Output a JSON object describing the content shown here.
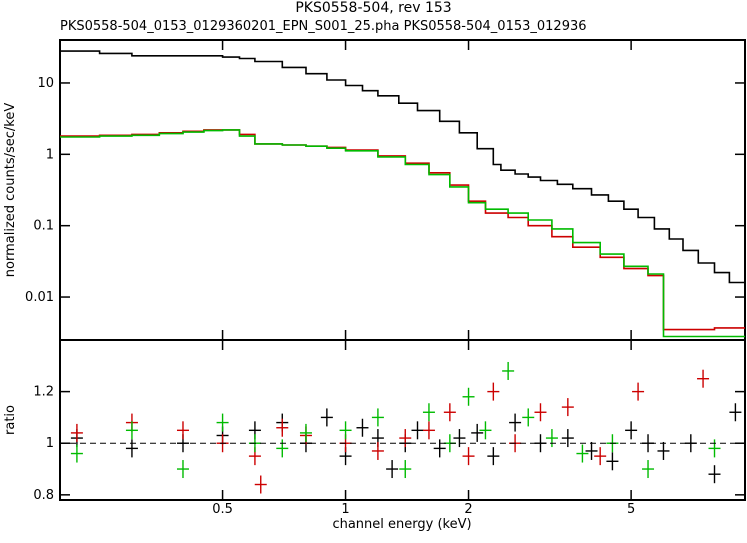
{
  "chart_data": {
    "type": "scatter",
    "title": "PKS0558-504, rev 153",
    "subtitle": "PKS0558-504_0153_0129360201_EPN_S001_25.pha PKS0558-504_0153_012936",
    "xlabel": "channel energy (keV)",
    "x_scale": "log",
    "xlim": [
      0.2,
      9.5
    ],
    "x_ticks": [
      {
        "value": 0.5,
        "label": "0.5"
      },
      {
        "value": 1,
        "label": "1"
      },
      {
        "value": 2,
        "label": "2"
      },
      {
        "value": 5,
        "label": "5"
      }
    ],
    "panels": [
      {
        "name": "spectrum",
        "ylabel": "normalized counts/sec/keV",
        "y_scale": "log",
        "ylim": [
          0.0025,
          40
        ],
        "y_ticks": [
          {
            "value": 0.01,
            "label": "0.01"
          },
          {
            "value": 0.1,
            "label": "0.1"
          },
          {
            "value": 1,
            "label": "1"
          },
          {
            "value": 10,
            "label": "10"
          }
        ],
        "series": [
          {
            "color": "#000000",
            "x": [
              0.2,
              0.25,
              0.3,
              0.35,
              0.4,
              0.45,
              0.5,
              0.55,
              0.6,
              0.7,
              0.8,
              0.9,
              1.0,
              1.1,
              1.2,
              1.35,
              1.5,
              1.7,
              1.9,
              2.1,
              2.3,
              2.4,
              2.6,
              2.8,
              3.0,
              3.3,
              3.6,
              4.0,
              4.4,
              4.8,
              5.2,
              5.7,
              6.2,
              6.7,
              7.3,
              8.0,
              8.7,
              9.5
            ],
            "y": [
              28,
              26,
              24,
              24,
              24,
              24,
              23,
              22,
              20,
              16.5,
              13.5,
              11,
              9.2,
              7.8,
              6.6,
              5.2,
              4.1,
              2.9,
              2.0,
              1.2,
              0.72,
              0.6,
              0.53,
              0.48,
              0.43,
              0.38,
              0.33,
              0.27,
              0.22,
              0.17,
              0.13,
              0.09,
              0.065,
              0.045,
              0.03,
              0.022,
              0.016,
              0.016
            ]
          },
          {
            "color": "#cc0000",
            "x": [
              0.2,
              0.25,
              0.3,
              0.35,
              0.4,
              0.45,
              0.5,
              0.55,
              0.6,
              0.7,
              0.8,
              0.9,
              1.0,
              1.2,
              1.4,
              1.6,
              1.8,
              2.0,
              2.2,
              2.5,
              2.8,
              3.2,
              3.6,
              4.2,
              4.8,
              5.5,
              6.0,
              7.0,
              8.0,
              9.5
            ],
            "y": [
              1.8,
              1.85,
              1.9,
              2.0,
              2.1,
              2.2,
              2.2,
              1.9,
              1.4,
              1.35,
              1.3,
              1.25,
              1.15,
              0.95,
              0.75,
              0.55,
              0.37,
              0.22,
              0.15,
              0.13,
              0.1,
              0.07,
              0.05,
              0.036,
              0.025,
              0.02,
              0.0035,
              0.0035,
              0.0037,
              0.0037
            ]
          },
          {
            "color": "#00bb00",
            "x": [
              0.2,
              0.25,
              0.3,
              0.35,
              0.4,
              0.45,
              0.5,
              0.55,
              0.6,
              0.7,
              0.8,
              0.9,
              1.0,
              1.2,
              1.4,
              1.6,
              1.8,
              2.0,
              2.2,
              2.5,
              2.8,
              3.2,
              3.6,
              4.2,
              4.8,
              5.5,
              6.0,
              7.0,
              8.0,
              9.5
            ],
            "y": [
              1.75,
              1.8,
              1.85,
              1.95,
              2.05,
              2.15,
              2.2,
              1.8,
              1.4,
              1.35,
              1.3,
              1.22,
              1.12,
              0.92,
              0.72,
              0.52,
              0.35,
              0.21,
              0.17,
              0.15,
              0.12,
              0.09,
              0.058,
              0.04,
              0.027,
              0.021,
              0.0028,
              0.0028,
              0.0028,
              0.0028
            ]
          }
        ]
      },
      {
        "name": "ratio",
        "ylabel": "ratio",
        "y_scale": "linear",
        "ylim": [
          0.78,
          1.4
        ],
        "y_ticks": [
          {
            "value": 0.8,
            "label": "0.8"
          },
          {
            "value": 1,
            "label": "1"
          },
          {
            "value": 1.2,
            "label": "1.2"
          }
        ],
        "series": [
          {
            "color": "#000000",
            "x": [
              0.22,
              0.3,
              0.4,
              0.5,
              0.6,
              0.7,
              0.8,
              0.9,
              1.0,
              1.1,
              1.2,
              1.3,
              1.4,
              1.5,
              1.7,
              1.9,
              2.1,
              2.3,
              2.6,
              3.0,
              3.5,
              4.0,
              4.5,
              5.0,
              5.5,
              6.0,
              7.0,
              8.0,
              9.0
            ],
            "y": [
              1.02,
              0.98,
              1.0,
              1.03,
              1.05,
              1.08,
              1.0,
              1.1,
              0.95,
              1.06,
              1.02,
              0.9,
              1.0,
              1.05,
              0.98,
              1.02,
              1.04,
              0.95,
              1.08,
              1.0,
              1.02,
              0.97,
              0.93,
              1.05,
              1.0,
              0.97,
              1.0,
              0.88,
              1.12
            ]
          },
          {
            "color": "#cc0000",
            "x": [
              0.22,
              0.3,
              0.4,
              0.5,
              0.6,
              0.62,
              0.7,
              0.8,
              1.0,
              1.2,
              1.4,
              1.6,
              1.8,
              2.0,
              2.3,
              2.6,
              3.0,
              3.5,
              4.2,
              5.2,
              7.5
            ],
            "y": [
              1.04,
              1.08,
              1.05,
              1.0,
              0.95,
              0.84,
              1.06,
              1.03,
              1.0,
              0.97,
              1.02,
              1.05,
              1.12,
              0.95,
              1.2,
              1.0,
              1.12,
              1.14,
              0.95,
              1.2,
              1.25
            ]
          },
          {
            "color": "#00bb00",
            "x": [
              0.22,
              0.3,
              0.4,
              0.5,
              0.6,
              0.7,
              0.8,
              1.0,
              1.2,
              1.4,
              1.6,
              1.8,
              2.0,
              2.2,
              2.5,
              2.8,
              3.2,
              3.8,
              4.5,
              5.5,
              8.0
            ],
            "y": [
              0.96,
              1.05,
              0.9,
              1.08,
              1.0,
              0.98,
              1.04,
              1.05,
              1.1,
              0.9,
              1.12,
              1.0,
              1.18,
              1.05,
              1.28,
              1.1,
              1.02,
              0.96,
              1.0,
              0.9,
              0.98
            ]
          }
        ]
      }
    ]
  }
}
